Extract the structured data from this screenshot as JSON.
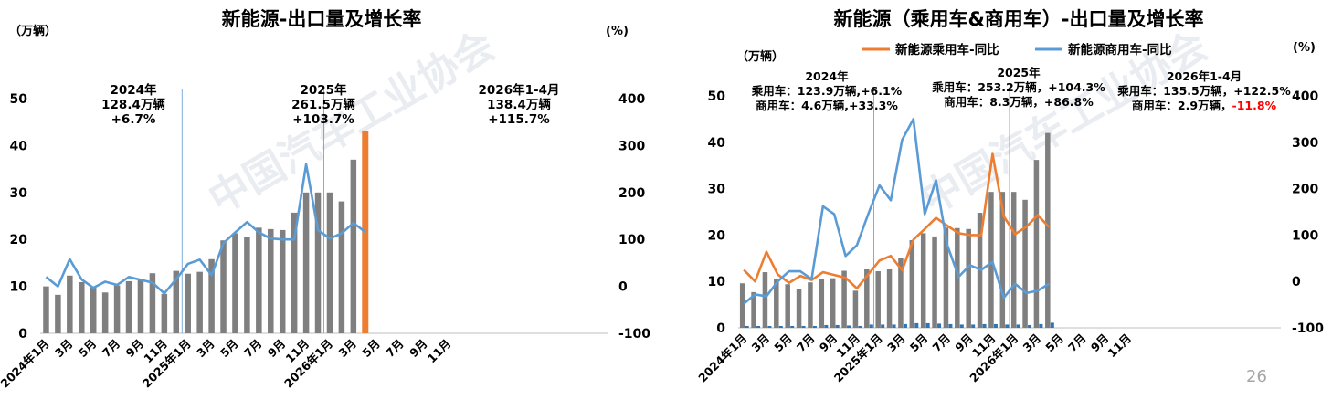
{
  "page_number": "26",
  "watermark_text": "中国汽车工业协会",
  "chart_data": [
    {
      "type": "bar+line",
      "title": "新能源-出口量及增长率",
      "left_unit": "（万辆）",
      "right_unit": "(%)",
      "ylim_left": [
        0,
        50
      ],
      "yticks_left": [
        "0",
        "10",
        "20",
        "30",
        "40",
        "50"
      ],
      "ylim_right": [
        -100,
        400
      ],
      "yticks_right": [
        "-100",
        "0",
        "100",
        "200",
        "300",
        "400"
      ],
      "x_labels": [
        "2024年1月",
        "3月",
        "5月",
        "7月",
        "9月",
        "11月",
        "2025年1月",
        "3月",
        "5月",
        "7月",
        "9月",
        "11月",
        "2026年1月",
        "3月",
        "5月",
        "7月",
        "9月",
        "11月"
      ],
      "bar_values": [
        10.0,
        8.2,
        12.3,
        10.9,
        9.8,
        8.7,
        10.2,
        11.1,
        11.3,
        12.8,
        8.4,
        13.3,
        12.7,
        13.1,
        15.8,
        19.8,
        21.3,
        20.6,
        22.5,
        22.2,
        22.0,
        25.7,
        30.0,
        30.0,
        30.0,
        28.1,
        37.0,
        43.2
      ],
      "bar_color": "#7f7f7f",
      "highlight_color": "#ed7d31",
      "line_name": "同比",
      "line_values": [
        20,
        0,
        58,
        15,
        -3,
        10,
        3,
        20,
        14,
        8,
        -15,
        15,
        48,
        57,
        24,
        92,
        115,
        137,
        115,
        102,
        100,
        100,
        260,
        120,
        102,
        113,
        135,
        116
      ],
      "line_color": "#5b9bd5",
      "annotations": [
        {
          "lines": [
            "2024年",
            "128.4万辆",
            "+6.7%"
          ]
        },
        {
          "lines": [
            "2025年",
            "261.5万辆",
            "+103.7%"
          ]
        },
        {
          "lines": [
            "2026年1-4月",
            "138.4万辆",
            "+115.7%"
          ]
        }
      ]
    },
    {
      "type": "bar+line",
      "title": "新能源（乘用车&商用车）-出口量及增长率",
      "left_unit": "（万辆）",
      "right_unit": "(%)",
      "ylim_left": [
        0,
        50
      ],
      "yticks_left": [
        "0",
        "10",
        "20",
        "30",
        "40",
        "50"
      ],
      "ylim_right": [
        -100,
        400
      ],
      "yticks_right": [
        "-100",
        "0",
        "100",
        "200",
        "300",
        "400"
      ],
      "x_labels": [
        "2024年1月",
        "3月",
        "5月",
        "7月",
        "9月",
        "11月",
        "2025年1月",
        "3月",
        "5月",
        "7月",
        "9月",
        "11月",
        "2026年1月",
        "3月",
        "5月",
        "7月",
        "9月",
        "11月"
      ],
      "series": [
        {
          "name": "新能源乘用车-同比",
          "color": "#ed7d31",
          "values": [
            25,
            0,
            64,
            15,
            -3,
            12,
            3,
            20,
            14,
            8,
            -15,
            15,
            45,
            55,
            24,
            90,
            113,
            137,
            120,
            104,
            100,
            100,
            275,
            140,
            102,
            118,
            143,
            117
          ]
        },
        {
          "name": "新能源商用车-同比",
          "color": "#5b9bd5",
          "values": [
            -48,
            -28,
            -32,
            0,
            22,
            22,
            5,
            162,
            145,
            55,
            78,
            145,
            207,
            175,
            305,
            350,
            145,
            218,
            78,
            10,
            35,
            25,
            42,
            -35,
            -5,
            -25,
            -20,
            -5
          ]
        }
      ],
      "bar_values_passenger": [
        9.6,
        7.7,
        12.0,
        10.5,
        9.4,
        8.3,
        9.8,
        10.5,
        10.7,
        12.3,
        8.0,
        12.6,
        12.2,
        12.6,
        15.1,
        18.9,
        20.4,
        19.7,
        21.6,
        21.5,
        21.3,
        24.8,
        29.3,
        29.3,
        29.3,
        27.6,
        36.2,
        42.0
      ],
      "bar_values_commercial": [
        0.4,
        0.4,
        0.4,
        0.4,
        0.4,
        0.4,
        0.4,
        0.6,
        0.6,
        0.5,
        0.4,
        0.7,
        0.7,
        0.7,
        0.8,
        1.0,
        1.0,
        0.9,
        0.8,
        0.7,
        0.7,
        0.8,
        0.8,
        0.7,
        0.7,
        0.6,
        0.8,
        1.1
      ],
      "bar_color_passenger": "#7f7f7f",
      "bar_color_commercial": "#2e75b6",
      "annotations": [
        {
          "lines": [
            "2024年",
            "乘用车：123.9万辆,+6.1%",
            "商用车：4.6万辆,+33.3%"
          ]
        },
        {
          "lines": [
            "2025年",
            "乘用车：253.2万辆，+104.3%",
            "商用车：8.3万辆，+86.8%"
          ]
        },
        {
          "lines": [
            "2026年1-4月",
            "乘用车：135.5万辆，+122.5%",
            "商用车：2.9万辆，"
          ],
          "neg": "-11.8%"
        }
      ]
    }
  ]
}
